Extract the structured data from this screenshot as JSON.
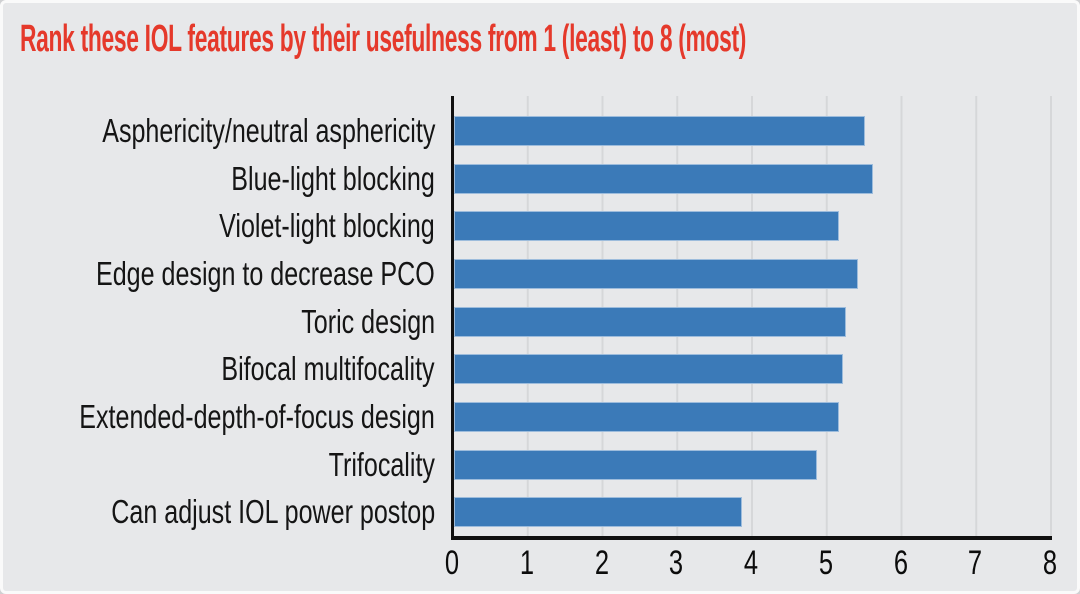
{
  "colors": {
    "background": "#e7e8ea",
    "bar_blue": "#3b7ab8",
    "title_red": "#e5392b",
    "axis_black": "#101010",
    "gridline_gray": "#d6d7d9"
  },
  "chart_data": {
    "type": "bar",
    "orientation": "horizontal",
    "title": "Rank these IOL features by their usefulness from 1 (least) to 8 (most)",
    "categories": [
      "Asphericity/neutral asphericity",
      "Blue-light blocking",
      "Violet-light blocking",
      "Edge design to decrease PCO",
      "Toric design",
      "Bifocal multifocality",
      "Extended-depth-of-focus design",
      "Trifocality",
      "Can adjust IOL power postop"
    ],
    "values": [
      5.5,
      5.6,
      5.15,
      5.4,
      5.25,
      5.2,
      5.15,
      4.85,
      3.85
    ],
    "xlabel": "",
    "ylabel": "",
    "xlim": [
      0,
      8
    ],
    "xticks": [
      0,
      1,
      2,
      3,
      4,
      5,
      6,
      7,
      8
    ],
    "grid": "vertical-only",
    "legend": "none"
  }
}
